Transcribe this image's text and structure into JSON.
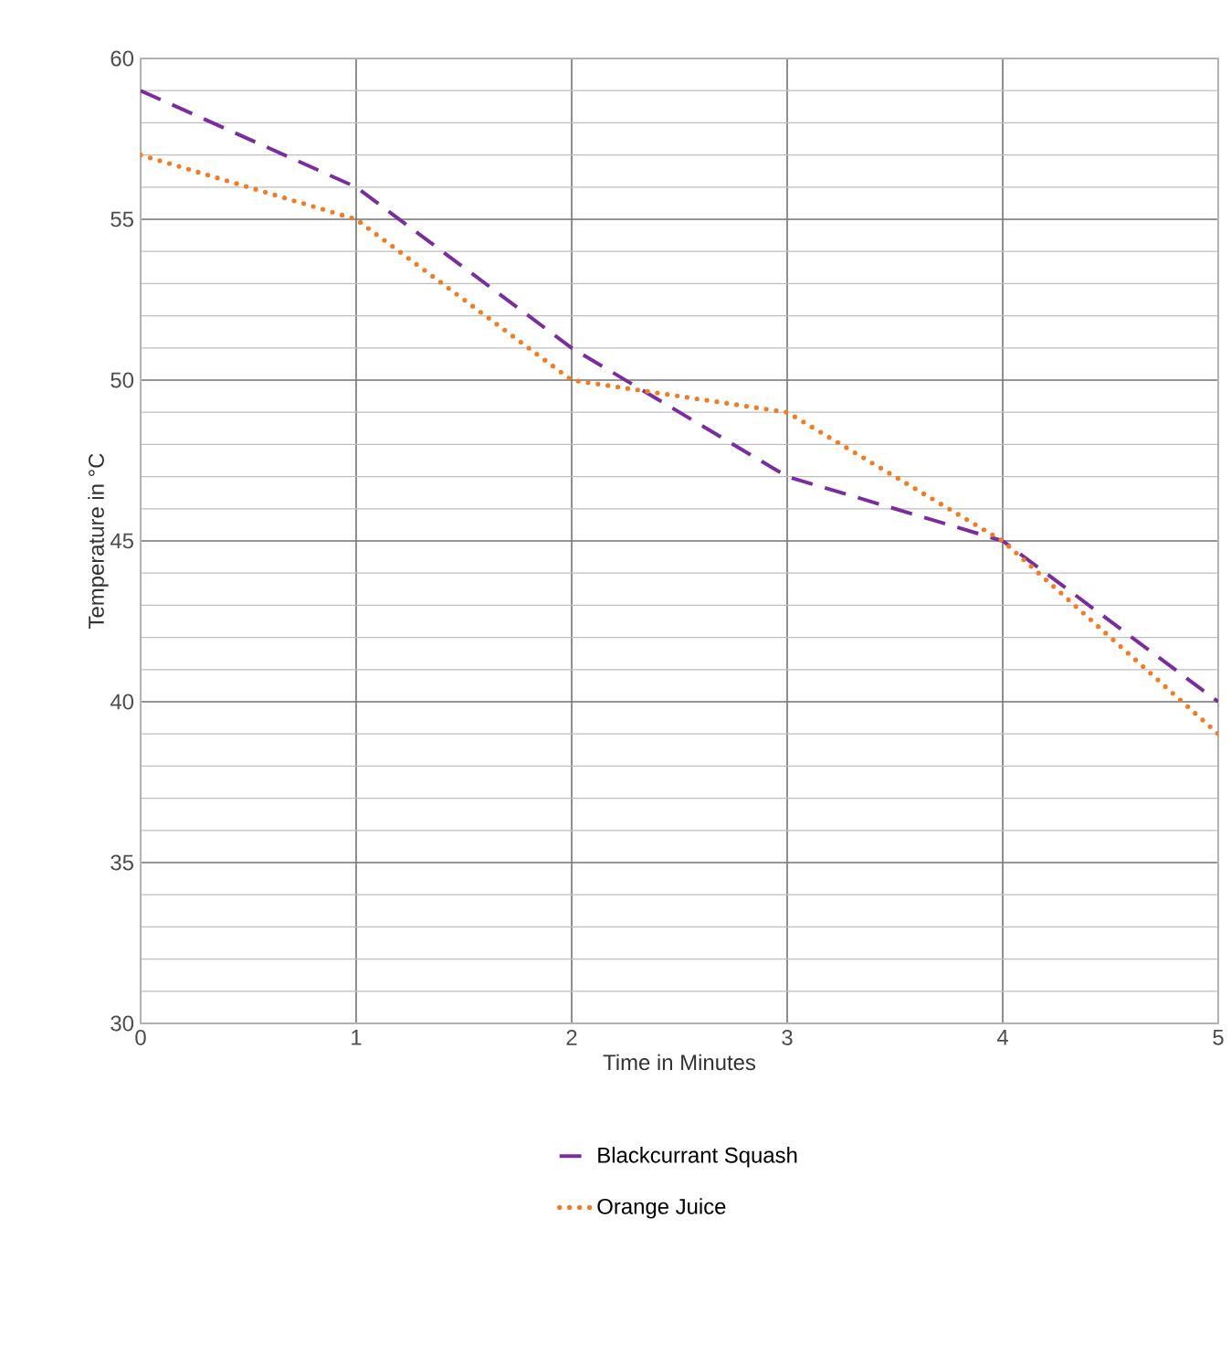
{
  "chart_data": {
    "type": "line",
    "xlabel": "Time in Minutes",
    "ylabel": "Temperature in °C",
    "x": [
      0,
      1,
      2,
      3,
      4,
      5
    ],
    "series": [
      {
        "name": "Blackcurrant Squash",
        "color": "#7b2d9e",
        "line_style": "dashed",
        "values": [
          59,
          56,
          51,
          47,
          45,
          40
        ]
      },
      {
        "name": "Orange Juice",
        "color": "#f47b20",
        "line_style": "dotted",
        "values": [
          57,
          55,
          50,
          49,
          45,
          39
        ]
      }
    ],
    "xlim": [
      0,
      5
    ],
    "ylim": [
      30,
      60
    ],
    "xticks": [
      0,
      1,
      2,
      3,
      4,
      5
    ],
    "yticks": [
      30,
      35,
      40,
      45,
      50,
      55,
      60
    ],
    "grid": true,
    "legend": "bottom",
    "marker": "none"
  }
}
